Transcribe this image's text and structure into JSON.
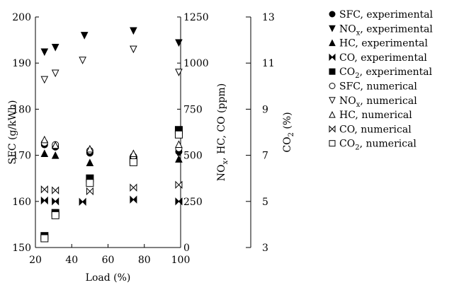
{
  "chart_data": {
    "type": "scatter",
    "xlabel": "Load (%)",
    "xlim": [
      20,
      100
    ],
    "xticks": [
      "20",
      "40",
      "60",
      "80",
      "100"
    ],
    "axes": {
      "sfc": {
        "label": "SFC (g/kWh)",
        "lim": [
          150,
          200
        ],
        "ticks": [
          "150",
          "160",
          "170",
          "180",
          "190",
          "200"
        ]
      },
      "ppm": {
        "label_main": "NO",
        "label_sub": "x",
        "label_rest": ", HC, CO (ppm)",
        "lim": [
          0,
          1250
        ],
        "ticks": [
          "0",
          "250",
          "500",
          "750",
          "1000",
          "1250"
        ]
      },
      "co2": {
        "label_main": "CO",
        "label_sub": "2",
        "label_rest": " (%)",
        "lim": [
          3,
          13
        ],
        "ticks": [
          "3",
          "5",
          "7",
          "9",
          "11",
          "13"
        ]
      }
    },
    "series": [
      {
        "name_main": "SFC, experimental",
        "name_sub": "",
        "name_rest": "",
        "marker": "circle-filled",
        "axis": "sfc",
        "x": [
          25,
          31,
          50,
          74,
          99
        ],
        "y": [
          172.3,
          171.8,
          170.5,
          169.2,
          170.8
        ]
      },
      {
        "name_main": "NO",
        "name_sub": "x",
        "name_rest": ", experimental",
        "marker": "tri-down-filled",
        "axis": "ppm",
        "x": [
          25,
          31,
          47,
          74,
          99
        ],
        "y": [
          1060,
          1085,
          1150,
          1175,
          1110
        ]
      },
      {
        "name_main": "HC, experimental",
        "name_sub": "",
        "name_rest": "",
        "marker": "tri-up-filled",
        "axis": "ppm",
        "x": [
          25,
          31,
          50,
          74,
          99
        ],
        "y": [
          510,
          500,
          460,
          490,
          480
        ]
      },
      {
        "name_main": "CO, experimental",
        "name_sub": "",
        "name_rest": "",
        "marker": "bowtie-filled",
        "axis": "ppm",
        "x": [
          25,
          31,
          46,
          74,
          99
        ],
        "y": [
          255,
          250,
          248,
          260,
          250
        ]
      },
      {
        "name_main": "CO",
        "name_sub": "2",
        "name_rest": ", experimental",
        "marker": "square-filled",
        "axis": "co2",
        "x": [
          25,
          31,
          50,
          74,
          99
        ],
        "y": [
          3.5,
          4.5,
          6.0,
          6.8,
          8.1
        ]
      },
      {
        "name_main": "SFC, numerical",
        "name_sub": "",
        "name_rest": "",
        "marker": "circle-open",
        "axis": "sfc",
        "x": [
          25,
          31,
          50,
          74,
          99
        ],
        "y": [
          172.7,
          172.3,
          171.0,
          169.8,
          171.5
        ]
      },
      {
        "name_main": "NO",
        "name_sub": "x",
        "name_rest": ", numerical",
        "marker": "tri-down-open",
        "axis": "ppm",
        "x": [
          25,
          31,
          46,
          74,
          99
        ],
        "y": [
          910,
          945,
          1015,
          1075,
          950
        ]
      },
      {
        "name_main": "HC, numerical",
        "name_sub": "",
        "name_rest": "",
        "marker": "tri-up-open",
        "axis": "ppm",
        "x": [
          25,
          31,
          50,
          74,
          99
        ],
        "y": [
          585,
          555,
          535,
          510,
          560
        ]
      },
      {
        "name_main": "CO, numerical",
        "name_sub": "",
        "name_rest": "",
        "marker": "bowtie-open",
        "axis": "ppm",
        "x": [
          25,
          31,
          50,
          74,
          99
        ],
        "y": [
          315,
          310,
          305,
          325,
          340
        ]
      },
      {
        "name_main": "CO",
        "name_sub": "2",
        "name_rest": ", numerical",
        "marker": "square-open",
        "axis": "co2",
        "x": [
          25,
          31,
          50,
          74,
          99
        ],
        "y": [
          3.4,
          4.4,
          5.8,
          6.7,
          7.9
        ]
      }
    ]
  }
}
